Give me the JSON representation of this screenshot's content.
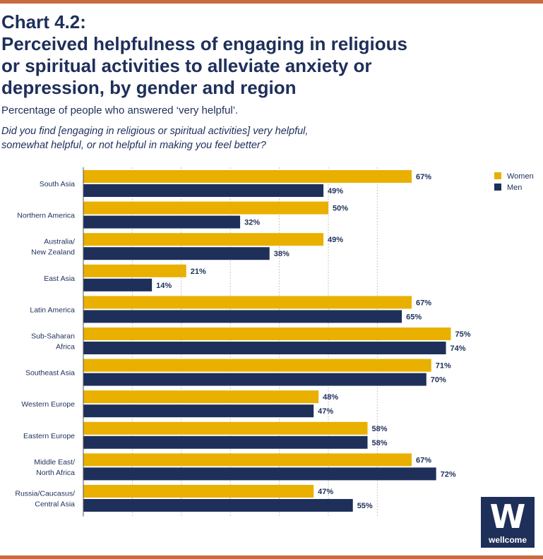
{
  "header": {
    "title_line1": "Chart 4.2:",
    "title_line2": "Perceived helpfulness of engaging in religious",
    "title_line3": "or spiritual activities to alleviate anxiety or",
    "title_line4": "depression, by gender and region",
    "subtitle": "Percentage of people who answered ‘very helpful’.",
    "question_line1": "Did you find [engaging in religious or spiritual activities] very helpful,",
    "question_line2": "somewhat helpful, or not helpful in making you feel better?"
  },
  "colors": {
    "women": "#e9b000",
    "men": "#1e2f5a",
    "text": "#1e2f5a",
    "grid": "#c6c6c6",
    "accent_rule": "#c8693f"
  },
  "chart_data": {
    "type": "bar",
    "orientation": "horizontal",
    "title": "Perceived helpfulness of engaging in religious or spiritual activities to alleviate anxiety or depression, by gender and region",
    "value_suffix": "%",
    "xlim": [
      0,
      100
    ],
    "grid": true,
    "legend_position": "top-right",
    "categories": [
      [
        "South Asia"
      ],
      [
        "Northern America"
      ],
      [
        "Australia/",
        "New Zealand"
      ],
      [
        "East Asia"
      ],
      [
        "Latin America"
      ],
      [
        "Sub-Saharan",
        "Africa"
      ],
      [
        "Southeast Asia"
      ],
      [
        "Western Europe"
      ],
      [
        "Eastern Europe"
      ],
      [
        "Middle East/",
        "North Africa"
      ],
      [
        "Russia/Caucasus/",
        "Central Asia"
      ]
    ],
    "series": [
      {
        "name": "Women",
        "values": [
          67,
          50,
          49,
          21,
          67,
          75,
          71,
          48,
          58,
          67,
          47
        ]
      },
      {
        "name": "Men",
        "values": [
          49,
          32,
          38,
          14,
          65,
          74,
          70,
          47,
          58,
          72,
          55
        ]
      }
    ]
  },
  "logo": {
    "letter": "W",
    "word": "wellcome"
  }
}
